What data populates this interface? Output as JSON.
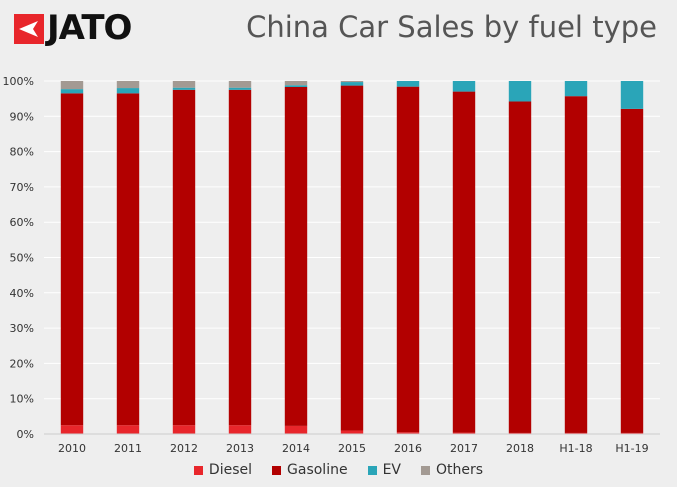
{
  "brand": {
    "logo_text": "JATO",
    "logo_icon": "jato-arrow-icon"
  },
  "colors": {
    "Diesel": "#e8262b",
    "Gasoline": "#b20000",
    "EV": "#2aa5b8",
    "Others": "#a39a93",
    "background": "#eeeeee",
    "gridline": "#ffffff"
  },
  "chart_data": {
    "type": "bar",
    "stacked": true,
    "title": "China Car Sales by fuel type",
    "xlabel": "",
    "ylabel": "",
    "ylim": [
      0,
      100
    ],
    "y_unit": "%",
    "y_ticks": [
      "0%",
      "10%",
      "20%",
      "30%",
      "40%",
      "50%",
      "60%",
      "70%",
      "80%",
      "90%",
      "100%"
    ],
    "categories": [
      "2010",
      "2011",
      "2012",
      "2013",
      "2014",
      "2015",
      "2016",
      "2017",
      "2018",
      "H1-18",
      "H1-19"
    ],
    "series": [
      {
        "name": "Diesel",
        "values": [
          2.5,
          2.5,
          2.5,
          2.5,
          2.3,
          1.0,
          0.5,
          0.4,
          0.3,
          0.3,
          0.3
        ]
      },
      {
        "name": "Gasoline",
        "values": [
          94.0,
          94.0,
          95.0,
          95.0,
          96.0,
          97.7,
          97.9,
          96.6,
          93.9,
          95.4,
          91.8
        ]
      },
      {
        "name": "EV",
        "values": [
          1.2,
          1.5,
          0.6,
          0.6,
          0.5,
          1.0,
          1.6,
          3.0,
          5.8,
          4.3,
          7.9
        ]
      },
      {
        "name": "Others",
        "values": [
          2.3,
          2.0,
          1.9,
          1.9,
          1.2,
          0.3,
          0.0,
          0.0,
          0.0,
          0.0,
          0.0
        ]
      }
    ],
    "grid": "horizontal",
    "legend_position": "bottom-center"
  }
}
